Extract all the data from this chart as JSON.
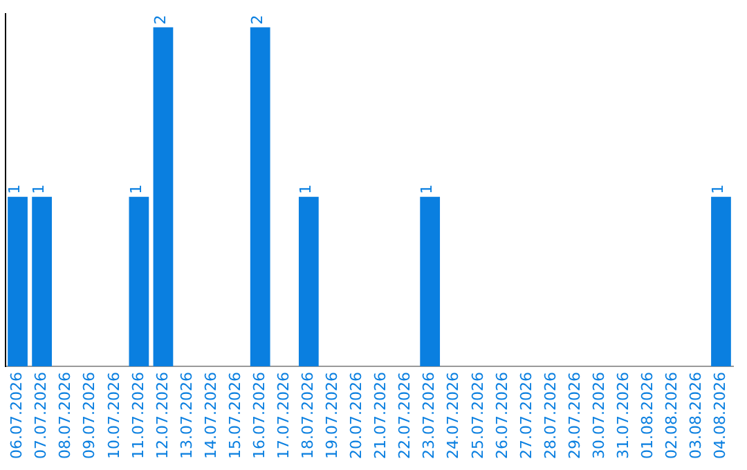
{
  "chart_data": {
    "type": "bar",
    "categories": [
      "06.07.2026",
      "07.07.2026",
      "08.07.2026",
      "09.07.2026",
      "10.07.2026",
      "11.07.2026",
      "12.07.2026",
      "13.07.2026",
      "14.07.2026",
      "15.07.2026",
      "16.07.2026",
      "17.07.2026",
      "18.07.2026",
      "19.07.2026",
      "20.07.2026",
      "21.07.2026",
      "22.07.2026",
      "23.07.2026",
      "24.07.2026",
      "25.07.2026",
      "26.07.2026",
      "27.07.2026",
      "28.07.2026",
      "29.07.2026",
      "30.07.2026",
      "31.07.2026",
      "01.08.2026",
      "02.08.2026",
      "03.08.2026",
      "04.08.2026"
    ],
    "values": [
      1,
      1,
      0,
      0,
      0,
      1,
      2,
      0,
      0,
      0,
      2,
      0,
      1,
      0,
      0,
      0,
      0,
      1,
      0,
      0,
      0,
      0,
      0,
      0,
      0,
      0,
      0,
      0,
      0,
      1
    ],
    "value_labels": [
      "1",
      "1",
      null,
      null,
      null,
      "1",
      "2",
      null,
      null,
      null,
      "2",
      null,
      "1",
      null,
      null,
      null,
      null,
      "1",
      null,
      null,
      null,
      null,
      null,
      null,
      null,
      null,
      null,
      null,
      null,
      "1"
    ],
    "color": "#0a7fe0",
    "ylim": [
      0,
      2.08
    ],
    "grid": false,
    "legend": false,
    "tick_labels": "x"
  }
}
